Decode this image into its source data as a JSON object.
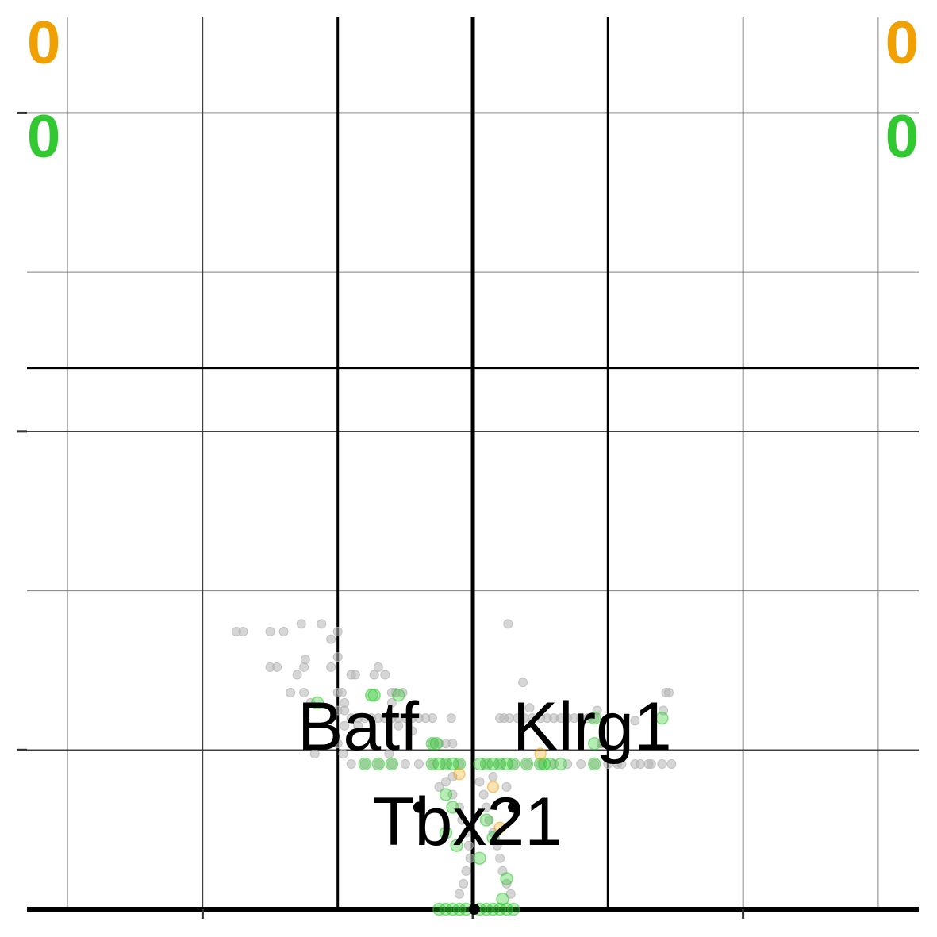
{
  "chart_data": {
    "type": "scatter",
    "title": "",
    "xlabel": "",
    "ylabel": "",
    "xlim": [
      -3.3,
      3.3
    ],
    "ylim": [
      0,
      35
    ],
    "x_major_ticks": [
      -2,
      0,
      2
    ],
    "x_minor_ticks": [
      -3,
      -1,
      1,
      3
    ],
    "y_major_ticks": [
      6.25,
      18.75,
      31.25
    ],
    "y_minor_ticks": [
      12.5,
      25
    ],
    "grid": true,
    "thresholds": {
      "fold_change_lines": [
        -1,
        0,
        1
      ],
      "significance_lines": [
        0,
        21.25
      ]
    },
    "counts": {
      "up_top_left": "0",
      "up_top_right": "0",
      "sig_top_left": "0",
      "sig_top_right": "0"
    },
    "colors": {
      "up": "#f0a000",
      "sig": "#32c832",
      "background": "#b4b4b4",
      "label_point": "#000000"
    },
    "labeled_genes": [
      {
        "name": "Batf",
        "x": -0.4,
        "y": 4.0
      },
      {
        "name": "Klrg1",
        "x": 0.3,
        "y": 4.0
      },
      {
        "name": "Tbx21",
        "x": 0.01,
        "y": 0.0
      }
    ],
    "series": [
      {
        "category": "not-significant",
        "points": [
          [
            -1.75,
            10.9
          ],
          [
            -1.7,
            10.9
          ],
          [
            -1.5,
            10.9
          ],
          [
            -1.4,
            10.9
          ],
          [
            -1.27,
            11.2
          ],
          [
            -1.12,
            11.2
          ],
          [
            -1.0,
            10.9
          ],
          [
            -1.05,
            10.6
          ],
          [
            -1.0,
            9.9
          ],
          [
            -1.24,
            9.8
          ],
          [
            -1.25,
            9.5
          ],
          [
            -1.3,
            9.2
          ],
          [
            -1.45,
            9.5
          ],
          [
            -1.5,
            9.5
          ],
          [
            -1.05,
            9.5
          ],
          [
            -0.7,
            9.5
          ],
          [
            -0.73,
            9.2
          ],
          [
            -0.9,
            9.2
          ],
          [
            -0.87,
            9.2
          ],
          [
            -0.65,
            9.2
          ],
          [
            -1.35,
            8.5
          ],
          [
            -1.25,
            8.5
          ],
          [
            -1.2,
            8.1
          ],
          [
            -1.0,
            8.5
          ],
          [
            -0.97,
            8.5
          ],
          [
            -0.95,
            8.1
          ],
          [
            -0.6,
            8.5
          ],
          [
            -0.57,
            8.5
          ],
          [
            -0.52,
            8.5
          ],
          [
            -0.6,
            8.1
          ],
          [
            -1.0,
            7.8
          ],
          [
            -0.95,
            7.8
          ],
          [
            -0.9,
            7.5
          ],
          [
            -0.85,
            7.5
          ],
          [
            -0.8,
            7.5
          ],
          [
            -0.75,
            7.5
          ],
          [
            -0.7,
            7.5
          ],
          [
            -0.65,
            7.5
          ],
          [
            -0.6,
            7.5
          ],
          [
            -0.55,
            7.5
          ],
          [
            -0.5,
            7.5
          ],
          [
            -0.45,
            7.5
          ],
          [
            -0.4,
            7.5
          ],
          [
            -0.35,
            7.5
          ],
          [
            -0.3,
            7.5
          ],
          [
            -0.16,
            7.5
          ],
          [
            -0.95,
            7.2
          ],
          [
            -0.55,
            7.2
          ],
          [
            -0.45,
            7.0
          ],
          [
            -0.85,
            7.2
          ],
          [
            -0.3,
            6.5
          ],
          [
            -0.25,
            6.5
          ],
          [
            -0.2,
            6.5
          ],
          [
            -0.15,
            6.5
          ],
          [
            -1.17,
            6.1
          ],
          [
            -0.62,
            6.1
          ],
          [
            -1.0,
            6.5
          ],
          [
            -0.96,
            6.1
          ],
          [
            -0.9,
            5.7
          ],
          [
            -0.8,
            5.7
          ],
          [
            -0.7,
            5.7
          ],
          [
            -0.6,
            5.7
          ],
          [
            -0.5,
            5.7
          ],
          [
            -0.4,
            5.7
          ],
          [
            -0.3,
            5.7
          ],
          [
            -0.2,
            5.7
          ],
          [
            -0.1,
            5.7
          ],
          [
            0.1,
            5.7
          ],
          [
            0.2,
            5.7
          ],
          [
            0.3,
            5.7
          ],
          [
            0.4,
            5.7
          ],
          [
            0.5,
            5.7
          ],
          [
            0.6,
            5.7
          ],
          [
            0.7,
            5.7
          ],
          [
            0.8,
            5.7
          ],
          [
            0.9,
            5.7
          ],
          [
            1.0,
            5.7
          ],
          [
            1.1,
            5.7
          ],
          [
            1.2,
            5.7
          ],
          [
            1.3,
            5.7
          ],
          [
            1.4,
            5.7
          ],
          [
            1.07,
            5.7
          ],
          [
            1.24,
            5.7
          ],
          [
            1.32,
            5.7
          ],
          [
            1.47,
            5.7
          ],
          [
            0.95,
            6.5
          ],
          [
            0.26,
            11.2
          ],
          [
            0.37,
            8.9
          ],
          [
            0.42,
            7.9
          ],
          [
            0.2,
            7.5
          ],
          [
            0.23,
            7.5
          ],
          [
            0.27,
            7.5
          ],
          [
            0.33,
            7.5
          ],
          [
            0.38,
            7.5
          ],
          [
            0.44,
            7.5
          ],
          [
            0.5,
            7.5
          ],
          [
            0.55,
            7.5
          ],
          [
            0.6,
            7.5
          ],
          [
            0.65,
            7.5
          ],
          [
            0.7,
            7.5
          ],
          [
            0.75,
            7.5
          ],
          [
            0.8,
            7.5
          ],
          [
            0.85,
            7.5
          ],
          [
            0.9,
            7.5
          ],
          [
            0.92,
            7.8
          ],
          [
            1.2,
            7.4
          ],
          [
            1.41,
            7.8
          ],
          [
            1.45,
            8.5
          ],
          [
            1.43,
            8.5
          ],
          [
            0.96,
            6.5
          ],
          [
            -0.2,
            5.0
          ],
          [
            -0.15,
            4.5
          ],
          [
            -0.1,
            4.0
          ],
          [
            -0.08,
            3.5
          ],
          [
            -0.05,
            3.0
          ],
          [
            -0.03,
            2.5
          ],
          [
            -0.02,
            2.0
          ],
          [
            -0.05,
            1.5
          ],
          [
            -0.07,
            1.0
          ],
          [
            -0.1,
            0.6
          ],
          [
            0.05,
            5.0
          ],
          [
            0.08,
            4.5
          ],
          [
            0.1,
            4.0
          ],
          [
            0.12,
            3.5
          ],
          [
            0.15,
            3.0
          ],
          [
            0.18,
            2.5
          ],
          [
            0.2,
            2.0
          ],
          [
            0.22,
            1.5
          ],
          [
            0.25,
            1.0
          ],
          [
            0.28,
            0.6
          ],
          [
            -0.15,
            5.2
          ],
          [
            0.15,
            5.2
          ],
          [
            -0.25,
            4.8
          ],
          [
            0.25,
            4.8
          ]
        ]
      },
      {
        "category": "significant",
        "points": [
          [
            -1.15,
            8.1
          ],
          [
            -0.75,
            8.4
          ],
          [
            -0.55,
            8.4
          ],
          [
            -0.73,
            8.4
          ],
          [
            -0.3,
            6.5
          ],
          [
            -0.27,
            6.5
          ],
          [
            -0.3,
            5.7
          ],
          [
            -0.25,
            5.7
          ],
          [
            -0.2,
            5.7
          ],
          [
            -0.8,
            5.7
          ],
          [
            -0.7,
            5.7
          ],
          [
            -0.6,
            5.7
          ],
          [
            -0.15,
            5.7
          ],
          [
            -0.1,
            5.7
          ],
          [
            0.05,
            5.7
          ],
          [
            0.1,
            5.7
          ],
          [
            0.15,
            5.7
          ],
          [
            0.2,
            5.7
          ],
          [
            0.25,
            5.7
          ],
          [
            0.3,
            5.7
          ],
          [
            0.4,
            5.7
          ],
          [
            0.5,
            5.7
          ],
          [
            0.65,
            5.7
          ],
          [
            0.9,
            6.5
          ],
          [
            0.9,
            5.7
          ],
          [
            0.53,
            5.7
          ],
          [
            0.57,
            5.7
          ],
          [
            0.9,
            7.5
          ],
          [
            1.4,
            7.5
          ],
          [
            -0.2,
            4.5
          ],
          [
            -0.15,
            4.0
          ],
          [
            -0.2,
            3.0
          ],
          [
            -0.12,
            2.5
          ],
          [
            0.1,
            3.5
          ],
          [
            0.15,
            2.8
          ],
          [
            0.05,
            2.0
          ],
          [
            0.25,
            1.2
          ],
          [
            0.22,
            0.4
          ],
          [
            -0.25,
            0.0
          ],
          [
            -0.2,
            0.0
          ],
          [
            -0.15,
            0.0
          ],
          [
            -0.1,
            0.0
          ],
          [
            -0.05,
            0.0
          ],
          [
            0.05,
            0.0
          ],
          [
            0.1,
            0.0
          ],
          [
            0.15,
            0.0
          ],
          [
            0.2,
            0.0
          ],
          [
            0.25,
            0.0
          ],
          [
            0.3,
            0.0
          ]
        ]
      },
      {
        "category": "up",
        "points": [
          [
            -0.1,
            5.3
          ],
          [
            0.15,
            4.8
          ],
          [
            0.5,
            6.1
          ],
          [
            0.2,
            3.2
          ]
        ]
      }
    ]
  }
}
